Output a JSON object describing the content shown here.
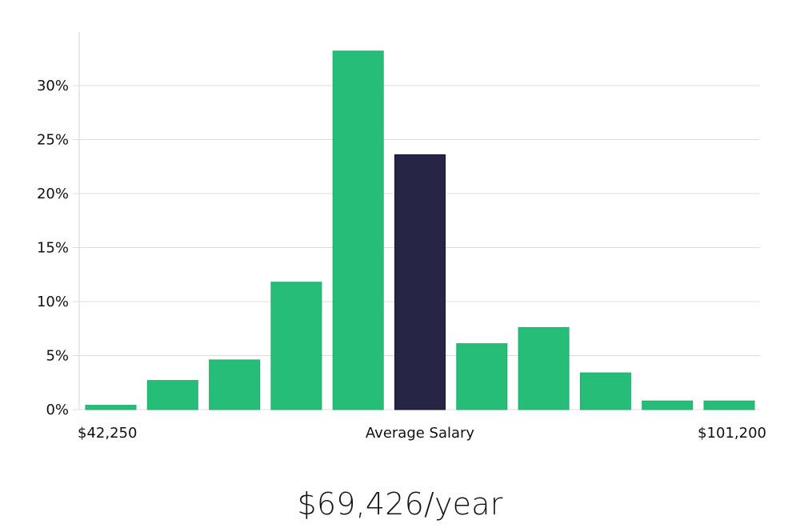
{
  "chart_data": {
    "type": "bar",
    "categories": [
      "1",
      "2",
      "3",
      "4",
      "5",
      "6",
      "7",
      "8",
      "9",
      "10",
      "11"
    ],
    "values": [
      0.4,
      2.7,
      4.6,
      11.8,
      33.2,
      23.6,
      6.1,
      7.6,
      3.4,
      0.8,
      0.8
    ],
    "highlight_index": 5,
    "ylim": [
      0,
      35
    ],
    "yticks": [
      0,
      5,
      10,
      15,
      20,
      25,
      30
    ],
    "ytick_labels": [
      "0%",
      "5%",
      "10%",
      "15%",
      "20%",
      "25%",
      "30%"
    ],
    "x_labels": {
      "left": "$42,250",
      "center": "Average Salary",
      "right": "$101,200"
    },
    "grid": true,
    "colors": {
      "bar": "#26bd78",
      "highlight": "#272545",
      "grid": "#dcdcdc",
      "axis": "#d5d5d5"
    }
  },
  "summary": {
    "salary": "$69,426/year"
  }
}
